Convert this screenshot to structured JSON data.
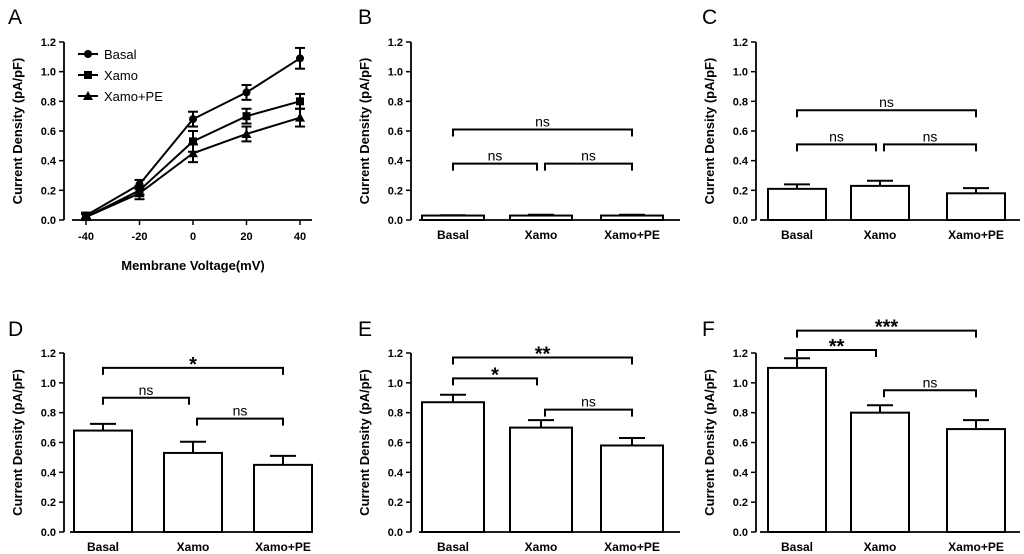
{
  "chart_data": [
    {
      "panel": "A",
      "type": "line",
      "ylabel": "Current Density (pA/pF)",
      "xlabel": "Membrane Voltage(mV)",
      "x": [
        -40,
        -20,
        0,
        20,
        40
      ],
      "x_tick_labels": [
        "-40",
        "-20",
        "0",
        "20",
        "40"
      ],
      "ylim": [
        0,
        1.2
      ],
      "y_ticks": [
        "0.0",
        "0.2",
        "0.4",
        "0.6",
        "0.8",
        "1.0",
        "1.2"
      ],
      "legend_position": "top-left",
      "series": [
        {
          "name": "Basal",
          "marker": "circle",
          "values": [
            0.03,
            0.24,
            0.68,
            0.86,
            1.09
          ],
          "errors": [
            0.02,
            0.03,
            0.05,
            0.05,
            0.07
          ]
        },
        {
          "name": "Xamo",
          "marker": "square",
          "values": [
            0.02,
            0.2,
            0.53,
            0.7,
            0.8
          ],
          "errors": [
            0.02,
            0.03,
            0.07,
            0.05,
            0.05
          ]
        },
        {
          "name": "Xamo+PE",
          "marker": "triangle",
          "values": [
            0.02,
            0.18,
            0.45,
            0.58,
            0.69
          ],
          "errors": [
            0.02,
            0.04,
            0.06,
            0.05,
            0.06
          ]
        }
      ]
    },
    {
      "panel": "B",
      "type": "bar",
      "ylabel": "Current Density (pA/pF)",
      "categories": [
        "Basal",
        "Xamo",
        "Xamo+PE"
      ],
      "values": [
        0.03,
        0.03,
        0.03
      ],
      "errors": [
        0.002,
        0.005,
        0.005
      ],
      "ylim": [
        0,
        1.2
      ],
      "y_ticks": [
        "0.0",
        "0.2",
        "0.4",
        "0.6",
        "0.8",
        "1.0",
        "1.2"
      ],
      "comparisons": [
        {
          "from": 0,
          "to": 1,
          "level": 0.38,
          "label": "ns"
        },
        {
          "from": 1,
          "to": 2,
          "level": 0.38,
          "label": "ns"
        },
        {
          "from": 0,
          "to": 2,
          "level": 0.61,
          "label": "ns"
        }
      ]
    },
    {
      "panel": "C",
      "type": "bar",
      "ylabel": "Current Density (pA/pF)",
      "categories": [
        "Basal",
        "Xamo",
        "Xamo+PE"
      ],
      "values": [
        0.21,
        0.23,
        0.18
      ],
      "errors": [
        0.03,
        0.035,
        0.035
      ],
      "ylim": [
        0,
        1.2
      ],
      "y_ticks": [
        "0.0",
        "0.2",
        "0.4",
        "0.6",
        "0.8",
        "1.0",
        "1.2"
      ],
      "comparisons": [
        {
          "from": 0,
          "to": 1,
          "level": 0.51,
          "label": "ns"
        },
        {
          "from": 1,
          "to": 2,
          "level": 0.51,
          "label": "ns"
        },
        {
          "from": 0,
          "to": 2,
          "level": 0.74,
          "label": "ns"
        }
      ]
    },
    {
      "panel": "D",
      "type": "bar",
      "ylabel": "Current Density (pA/pF)",
      "categories": [
        "Basal",
        "Xamo",
        "Xamo+PE"
      ],
      "values": [
        0.68,
        0.53,
        0.45
      ],
      "errors": [
        0.045,
        0.075,
        0.06
      ],
      "ylim": [
        0,
        1.2
      ],
      "y_ticks": [
        "0.0",
        "0.2",
        "0.4",
        "0.6",
        "0.8",
        "1.0",
        "1.2"
      ],
      "comparisons": [
        {
          "from": 0,
          "to": 1,
          "level": 0.9,
          "label": "ns"
        },
        {
          "from": 1,
          "to": 2,
          "level": 0.76,
          "label": "ns"
        },
        {
          "from": 0,
          "to": 2,
          "level": 1.1,
          "label": "*"
        }
      ]
    },
    {
      "panel": "E",
      "type": "bar",
      "ylabel": "Current Density (pA/pF)",
      "categories": [
        "Basal",
        "Xamo",
        "Xamo+PE"
      ],
      "values": [
        0.87,
        0.7,
        0.58
      ],
      "errors": [
        0.05,
        0.05,
        0.05
      ],
      "ylim": [
        0,
        1.2
      ],
      "y_ticks": [
        "0.0",
        "0.2",
        "0.4",
        "0.6",
        "0.8",
        "1.0",
        "1.2"
      ],
      "comparisons": [
        {
          "from": 0,
          "to": 1,
          "level": 1.03,
          "label": "*"
        },
        {
          "from": 1,
          "to": 2,
          "level": 0.82,
          "label": "ns"
        },
        {
          "from": 0,
          "to": 2,
          "level": 1.17,
          "label": "**"
        }
      ]
    },
    {
      "panel": "F",
      "type": "bar",
      "ylabel": "Current Density (pA/pF)",
      "categories": [
        "Basal",
        "Xamo",
        "Xamo+PE"
      ],
      "values": [
        1.1,
        0.8,
        0.69
      ],
      "errors": [
        0.065,
        0.05,
        0.06
      ],
      "ylim": [
        0,
        1.2
      ],
      "y_ticks": [
        "0.0",
        "0.2",
        "0.4",
        "0.6",
        "0.8",
        "1.0",
        "1.2"
      ],
      "comparisons": [
        {
          "from": 0,
          "to": 1,
          "level": 1.22,
          "label": "**"
        },
        {
          "from": 1,
          "to": 2,
          "level": 0.95,
          "label": "ns"
        },
        {
          "from": 0,
          "to": 2,
          "level": 1.35,
          "label": "***"
        }
      ]
    }
  ]
}
